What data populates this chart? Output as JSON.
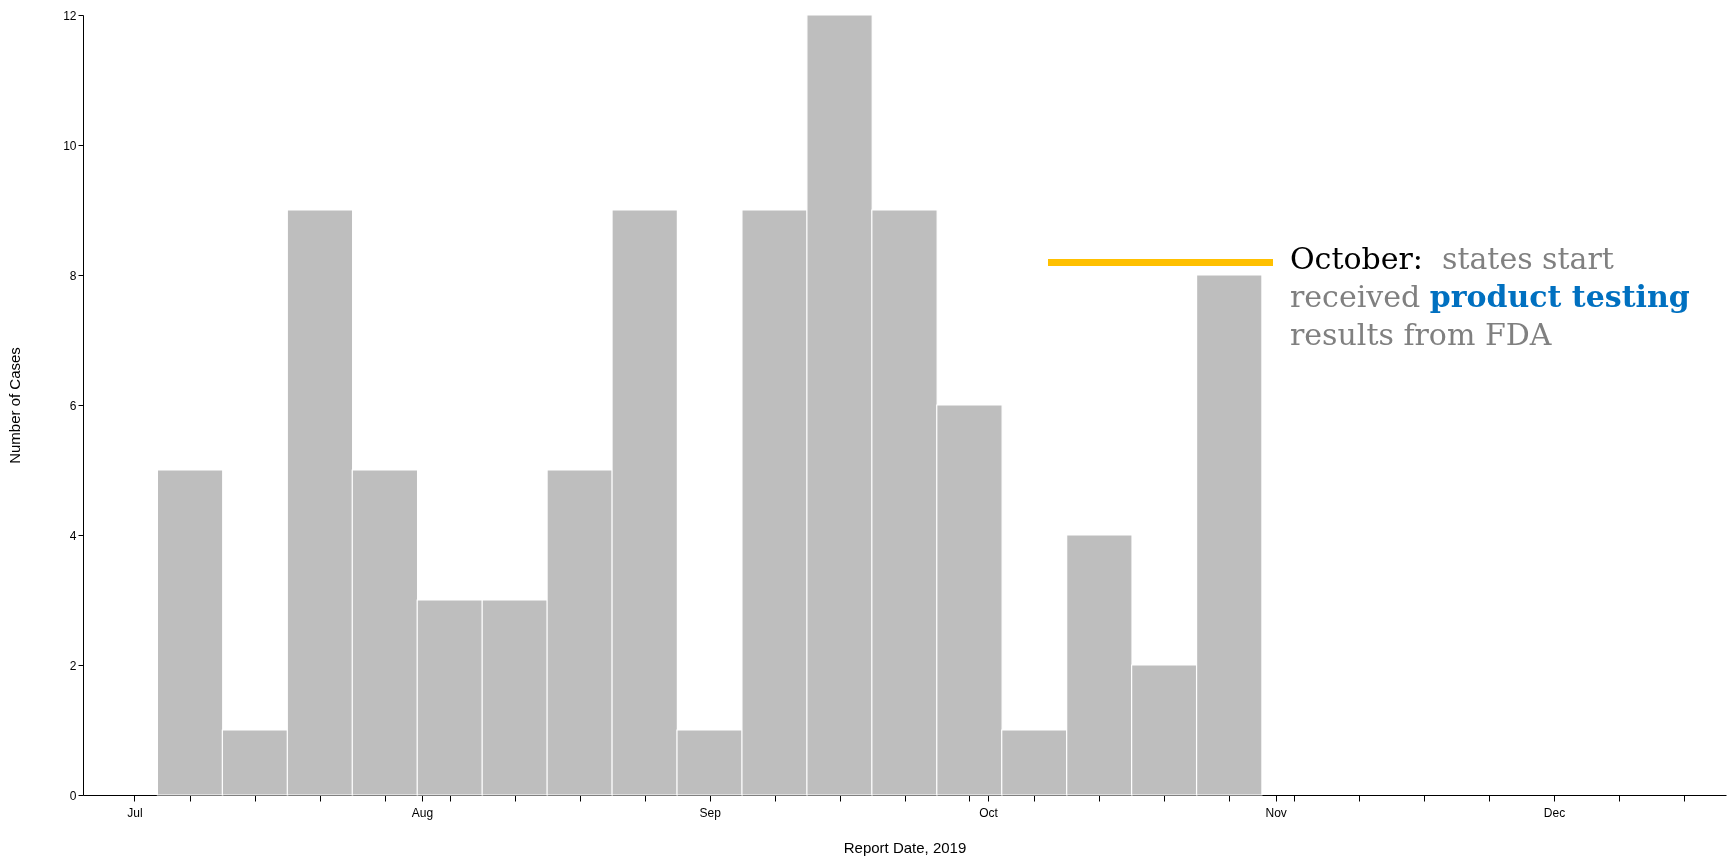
{
  "chart_data": {
    "type": "bar",
    "xlabel": "Report Date, 2019",
    "ylabel": "Number of Cases",
    "x": [
      "2019-07-07",
      "2019-07-14",
      "2019-07-21",
      "2019-07-28",
      "2019-08-04",
      "2019-08-11",
      "2019-08-18",
      "2019-08-25",
      "2019-09-01",
      "2019-09-08",
      "2019-09-15",
      "2019-09-22",
      "2019-09-29",
      "2019-10-06",
      "2019-10-13",
      "2019-10-20",
      "2019-10-27"
    ],
    "values": [
      5,
      1,
      9,
      5,
      3,
      3,
      5,
      9,
      1,
      9,
      12,
      9,
      6,
      1,
      4,
      2,
      8
    ],
    "color": "#bebebe",
    "xlim": [
      "2019-06-26",
      "2019-12-19"
    ],
    "xticks": [
      {
        "value": "2019-07-01",
        "label": "Jul"
      },
      {
        "value": "2019-07-07",
        "label": null
      },
      {
        "value": "2019-07-14",
        "label": null
      },
      {
        "value": "2019-07-21",
        "label": null
      },
      {
        "value": "2019-07-28",
        "label": null
      },
      {
        "value": "2019-08-01",
        "label": "Aug"
      },
      {
        "value": "2019-08-04",
        "label": null
      },
      {
        "value": "2019-08-11",
        "label": null
      },
      {
        "value": "2019-08-18",
        "label": null
      },
      {
        "value": "2019-08-25",
        "label": null
      },
      {
        "value": "2019-09-01",
        "label": "Sep"
      },
      {
        "value": "2019-09-08",
        "label": null
      },
      {
        "value": "2019-09-15",
        "label": null
      },
      {
        "value": "2019-09-22",
        "label": null
      },
      {
        "value": "2019-09-29",
        "label": null
      },
      {
        "value": "2019-10-01",
        "label": "Oct"
      },
      {
        "value": "2019-10-06",
        "label": null
      },
      {
        "value": "2019-10-13",
        "label": null
      },
      {
        "value": "2019-10-20",
        "label": null
      },
      {
        "value": "2019-10-27",
        "label": null
      },
      {
        "value": "2019-11-01",
        "label": "Nov"
      },
      {
        "value": "2019-11-03",
        "label": null
      },
      {
        "value": "2019-11-10",
        "label": null
      },
      {
        "value": "2019-11-17",
        "label": null
      },
      {
        "value": "2019-11-24",
        "label": null
      },
      {
        "value": "2019-12-01",
        "label": "Dec"
      },
      {
        "value": "2019-12-08",
        "label": null
      },
      {
        "value": "2019-12-15",
        "label": null
      }
    ],
    "ylim": [
      0,
      12
    ],
    "yticks": [
      0,
      2,
      4,
      6,
      8,
      10,
      12
    ],
    "grid": false,
    "annotations": [
      "October:",
      "states start received",
      "product testing",
      "results from FDA"
    ]
  }
}
